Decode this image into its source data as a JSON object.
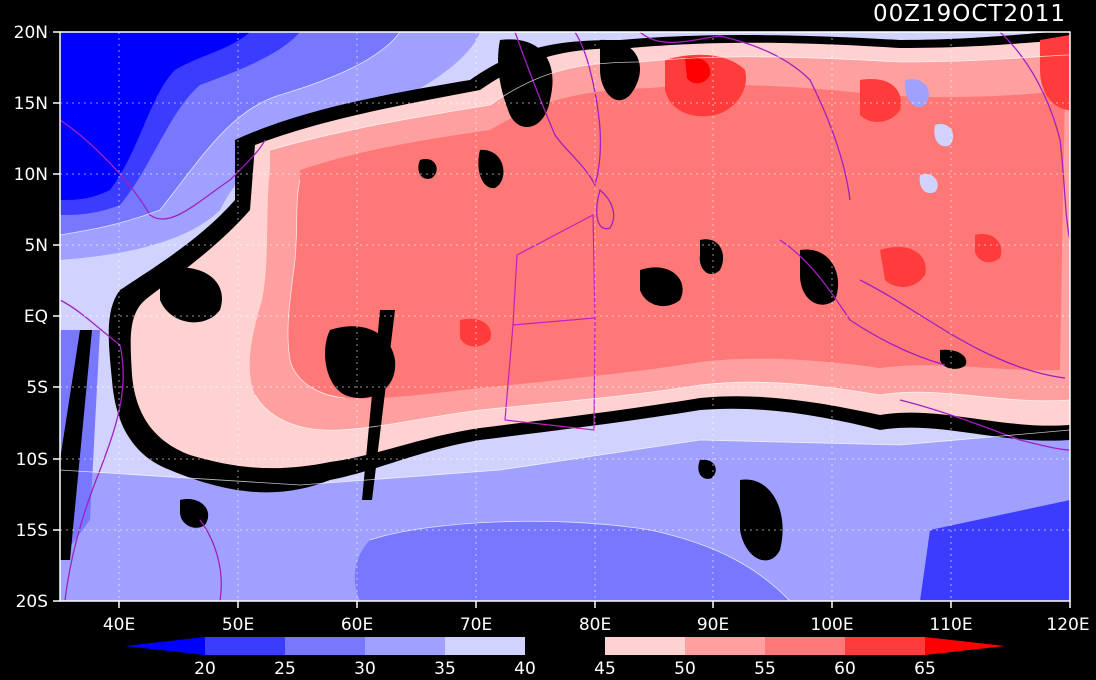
{
  "map": {
    "timestamp": "00Z19OCT2011",
    "lat_labels": [
      "20N",
      "15N",
      "10N",
      "5N",
      "EQ",
      "5S",
      "10S",
      "15S",
      "20S"
    ],
    "lon_labels": [
      "40E",
      "50E",
      "60E",
      "70E",
      "80E",
      "90E",
      "100E",
      "110E",
      "120E"
    ],
    "lon_range": [
      35,
      120
    ],
    "lat_range": [
      -20,
      20
    ],
    "colors": {
      "background": "#000000",
      "coastline": "#a020c0",
      "grid": "#ffffff",
      "contour_line": "#ffffff"
    }
  },
  "colorbar": {
    "labels": [
      "20",
      "25",
      "30",
      "35",
      "40",
      "45",
      "50",
      "55",
      "60",
      "65"
    ],
    "colors": [
      "#0000ff",
      "#3c3cff",
      "#7878ff",
      "#a0a0ff",
      "#d2d2ff",
      "#000000",
      "#ffd2d2",
      "#ffa0a0",
      "#ff7878",
      "#ff3c3c",
      "#ff0000"
    ]
  }
}
